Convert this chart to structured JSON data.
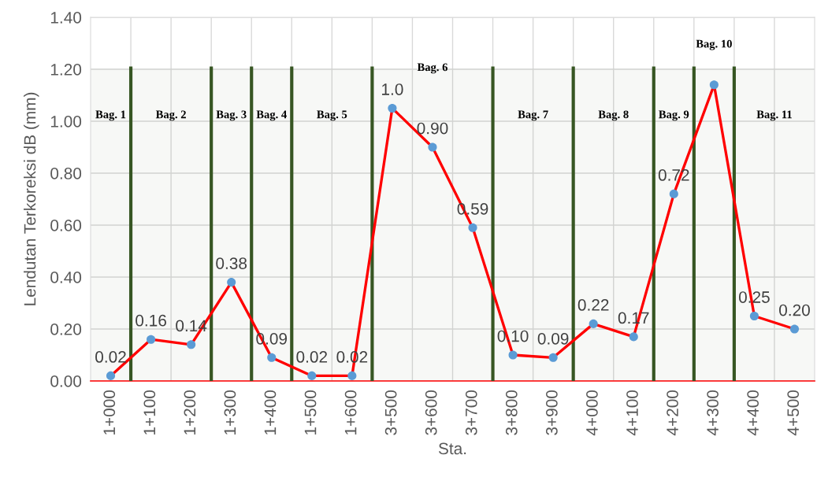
{
  "chart_data": {
    "type": "line",
    "xlabel": "Sta.",
    "ylabel": "Lendutan Terkoreksi dB (mm)",
    "categories": [
      "1+000",
      "1+100",
      "1+200",
      "1+300",
      "1+400",
      "1+500",
      "1+600",
      "3+500",
      "3+600",
      "3+700",
      "3+800",
      "3+900",
      "4+000",
      "4+100",
      "4+200",
      "4+300",
      "4+400",
      "4+500"
    ],
    "values": [
      0.02,
      0.16,
      0.14,
      0.38,
      0.09,
      0.02,
      0.02,
      1.05,
      0.9,
      0.59,
      0.1,
      0.09,
      0.22,
      0.17,
      0.72,
      1.14,
      0.25,
      0.2
    ],
    "value_labels": [
      "0.02",
      "0.16",
      "0.14",
      "0.38",
      "0.09",
      "0.02",
      "0.02",
      "1.0",
      "0.90",
      "0.59",
      "0.10",
      "0.09",
      "0.22",
      "0.17",
      "0.72",
      null,
      "0.25",
      "0.20"
    ],
    "color": "#ff0000",
    "colors": [
      "#5b9bd5",
      "#5b9bd5",
      "#5b9bd5",
      "#5b9bd5",
      "#5b9bd5",
      "#5b9bd5",
      "#5b9bd5",
      "#5b9bd5",
      "#5b9bd5",
      "#5b9bd5",
      "#5b9bd5",
      "#5b9bd5",
      "#5b9bd5",
      "#5b9bd5",
      "#5b9bd5",
      "#5b9bd5",
      "#5b9bd5",
      "#5b9bd5"
    ],
    "marker": "circle",
    "line_style": "solid",
    "ylim": [
      0,
      1.4
    ],
    "yticks": [
      {
        "value": 0,
        "label": "0.00"
      },
      {
        "value": 0.2,
        "label": "0.20"
      },
      {
        "value": 0.4,
        "label": "0.40"
      },
      {
        "value": 0.6,
        "label": "0.60"
      },
      {
        "value": 0.8,
        "label": "0.80"
      },
      {
        "value": 1.0,
        "label": "1.00"
      },
      {
        "value": 1.2,
        "label": "1.20"
      },
      {
        "value": 1.4,
        "label": "1.40"
      }
    ],
    "grid": true,
    "bands": [
      {
        "axis": "x",
        "from": "1+000",
        "to": "1+000",
        "label": "Bag. 1",
        "color": "#375623"
      },
      {
        "axis": "x",
        "from": "1+100",
        "to": "1+200",
        "label": "Bag. 2",
        "color": "#375623"
      },
      {
        "axis": "x",
        "from": "1+300",
        "to": "1+300",
        "label": "Bag. 3",
        "color": "#375623"
      },
      {
        "axis": "x",
        "from": "1+400",
        "to": "1+400",
        "label": "Bag. 4",
        "color": "#375623"
      },
      {
        "axis": "x",
        "from": "1+500",
        "to": "1+600",
        "label": "Bag. 5",
        "color": "#375623"
      },
      {
        "axis": "x",
        "from": "3+500",
        "to": "3+700",
        "label": "Bag. 6",
        "color": "#375623"
      },
      {
        "axis": "x",
        "from": "3+800",
        "to": "3+900",
        "label": "Bag. 7",
        "color": "#375623"
      },
      {
        "axis": "x",
        "from": "4+000",
        "to": "4+100",
        "label": "Bag. 8",
        "color": "#375623"
      },
      {
        "axis": "x",
        "from": "4+200",
        "to": "4+200",
        "label": "Bag. 9",
        "color": "#375623"
      },
      {
        "axis": "x",
        "from": "4+300",
        "to": "4+300",
        "label": "Bag. 10",
        "color": "#375623"
      },
      {
        "axis": "x",
        "from": "4+400",
        "to": "4+500",
        "label": "Bag. 11",
        "color": "#375623"
      }
    ]
  }
}
